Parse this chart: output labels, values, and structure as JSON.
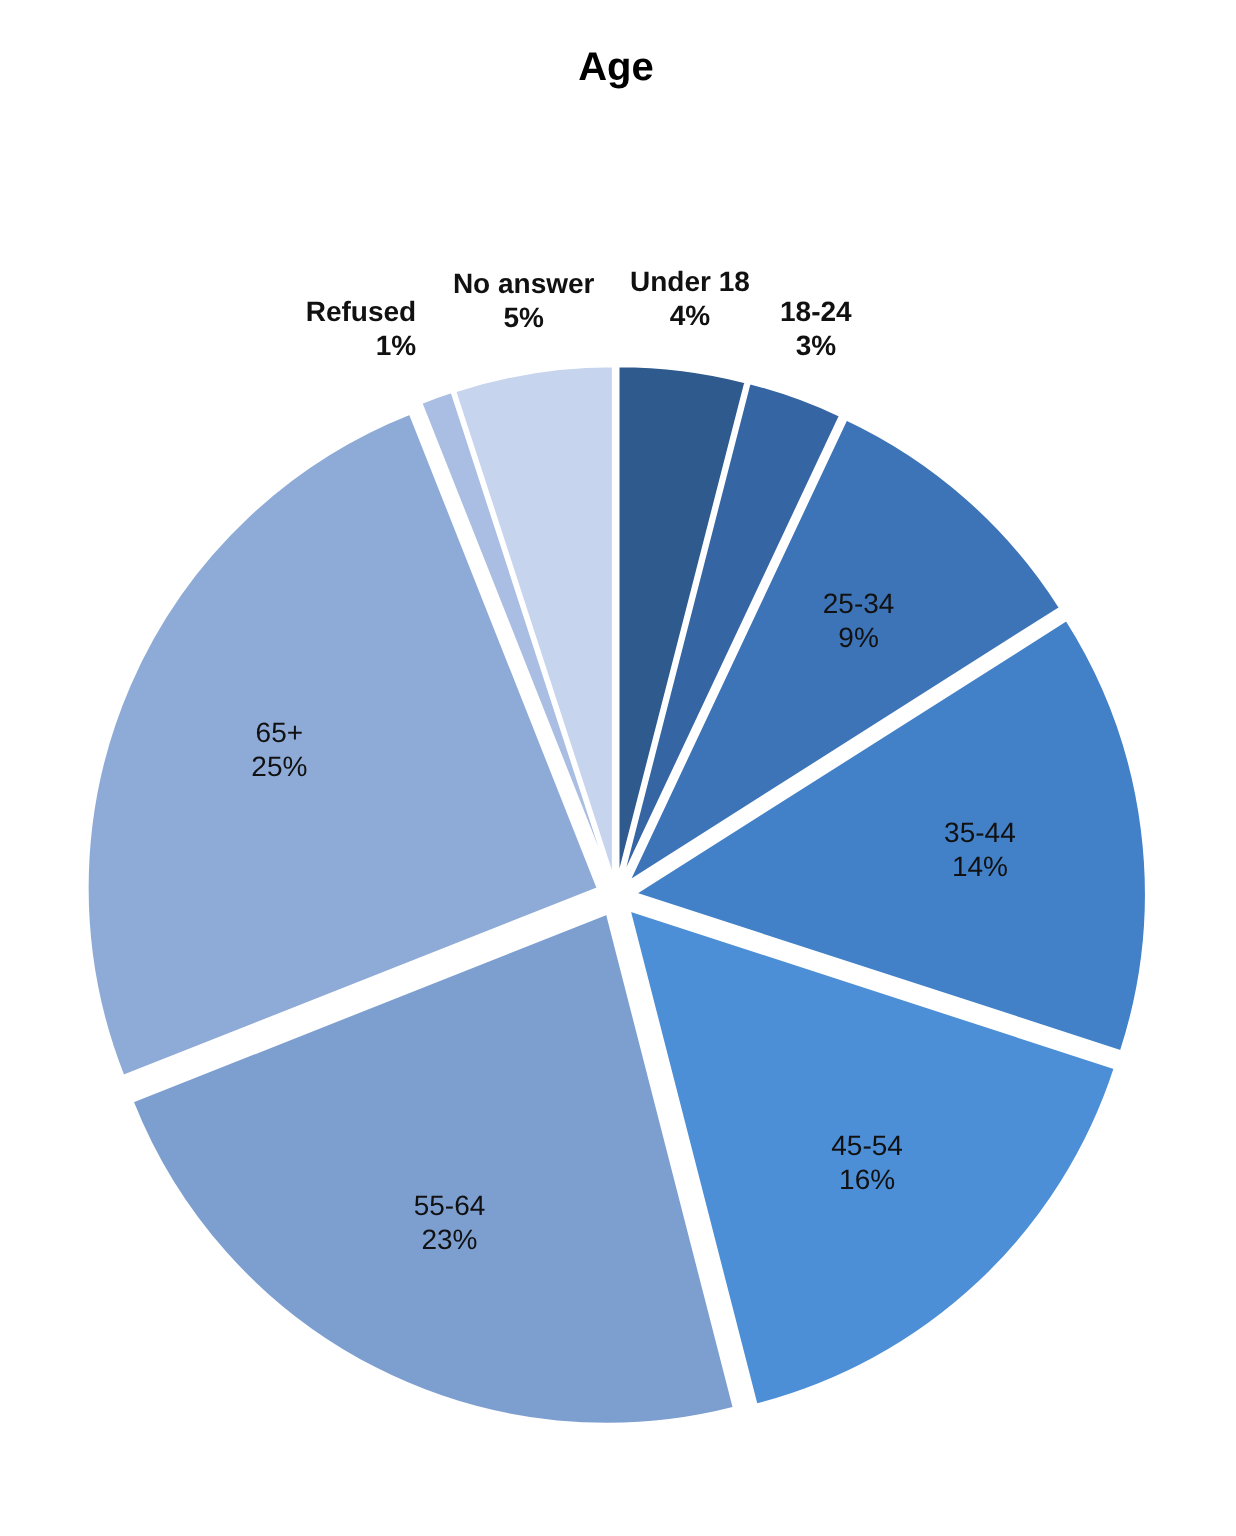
{
  "chart_data": {
    "type": "pie",
    "title": "Age",
    "categories": [
      "Under 18",
      "18-24",
      "25-34",
      "35-44",
      "45-54",
      "55-64",
      "65+",
      "Refused",
      "No answer"
    ],
    "values": [
      4,
      3,
      9,
      14,
      16,
      23,
      25,
      1,
      5
    ],
    "value_labels": [
      "4%",
      "3%",
      "9%",
      "14%",
      "16%",
      "23%",
      "25%",
      "1%",
      "5%"
    ],
    "colors": [
      "#2e5a8e",
      "#3566a3",
      "#3d74b8",
      "#4281c8",
      "#4d8fd6",
      "#7d9fd0",
      "#8eaad6",
      "#a9bee2",
      "#c7d4ee"
    ]
  }
}
